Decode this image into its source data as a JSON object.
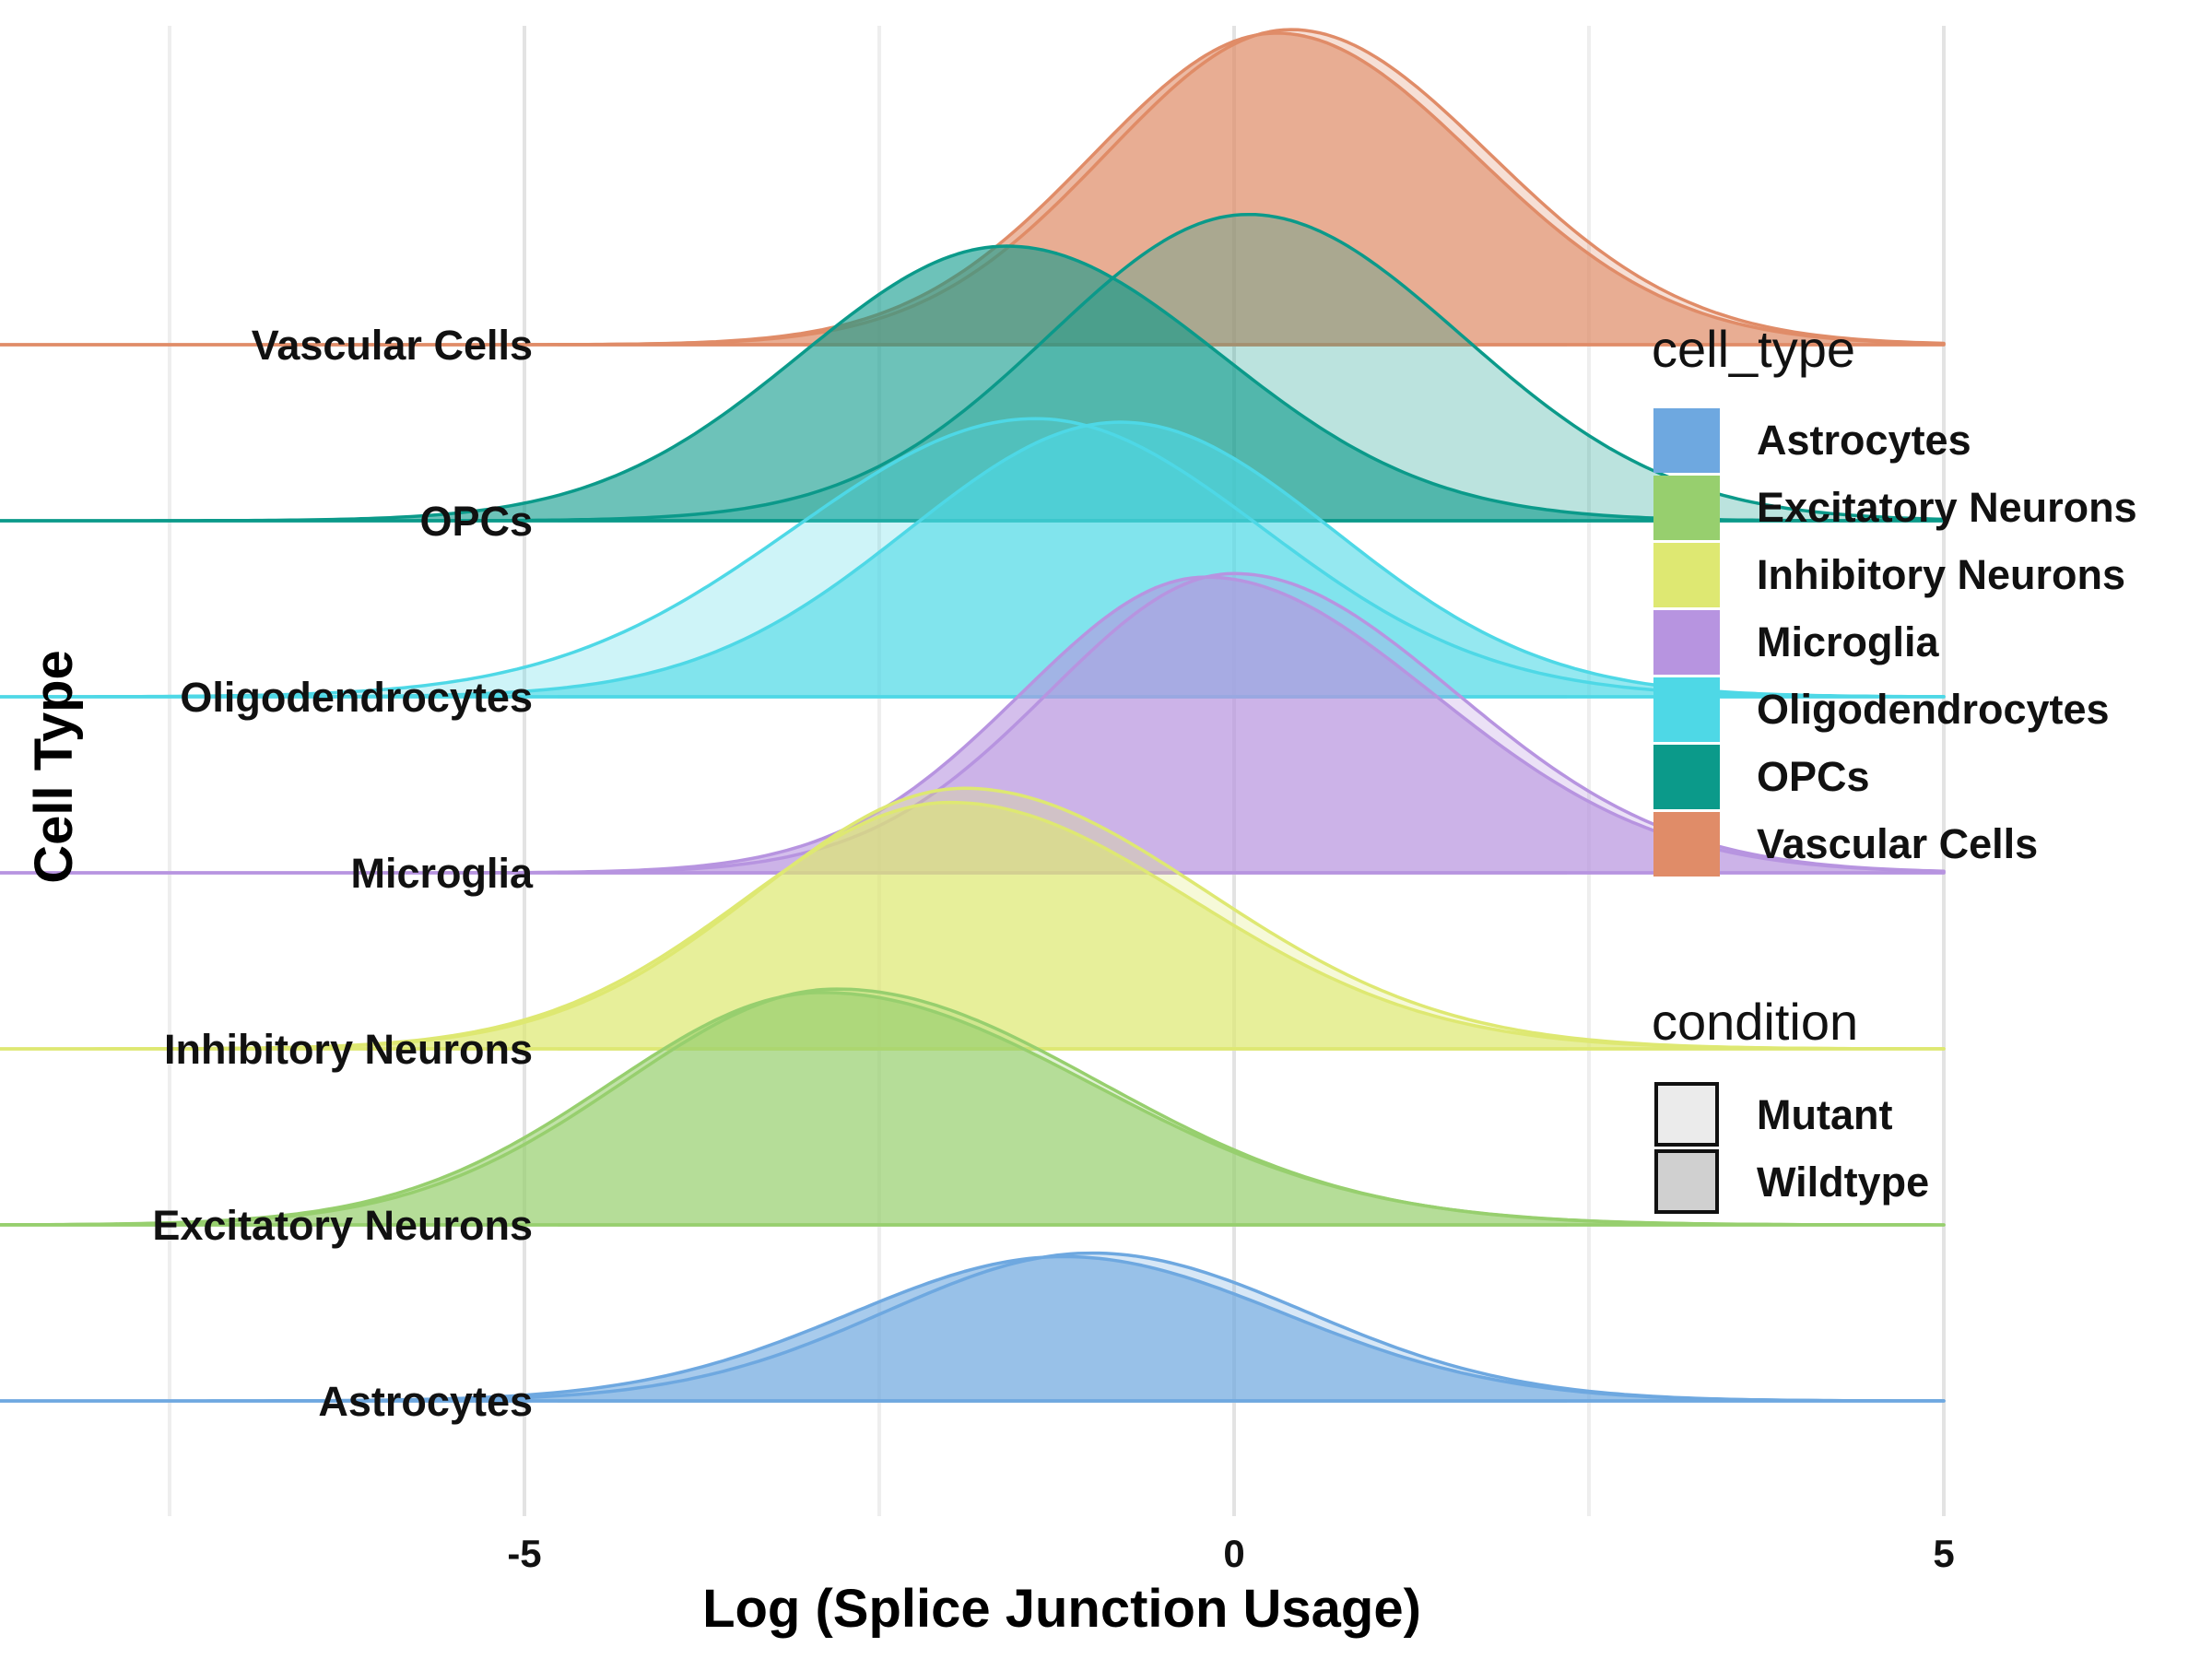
{
  "chart_data": {
    "type": "ridgeline",
    "xlabel": "Log (Splice Junction Usage)",
    "ylabel": "Cell Type",
    "xlim": [
      -11,
      5
    ],
    "xticks": [
      -10,
      -5,
      0,
      5
    ],
    "grid": true,
    "categories": [
      "Astrocytes",
      "Excitatory Neurons",
      "Inhibitory Neurons",
      "Microglia",
      "Oligodendrocytes",
      "OPCs",
      "Vascular Cells"
    ],
    "legend": {
      "position": "right",
      "fill_title": "cell_type",
      "fill_items": [
        {
          "label": "Astrocytes",
          "color": "#6EA8E0"
        },
        {
          "label": "Excitatory Neurons",
          "color": "#97CF6E"
        },
        {
          "label": "Inhibitory Neurons",
          "color": "#DEE872"
        },
        {
          "label": "Microglia",
          "color": "#B794E0"
        },
        {
          "label": "Oligodendrocytes",
          "color": "#4ED8E6"
        },
        {
          "label": "OPCs",
          "color": "#0B9A8A"
        },
        {
          "label": "Vascular Cells",
          "color": "#E08C68"
        }
      ],
      "condition_title": "condition",
      "condition_items": [
        {
          "label": "Mutant",
          "shade": "#EBEBEB"
        },
        {
          "label": "Wildtype",
          "shade": "#D0D0D0"
        }
      ]
    },
    "series": [
      {
        "cell_type": "Astrocytes",
        "color": "#6EA8E0",
        "mutant": {
          "mean": -1.0,
          "sd_left": 1.45,
          "sd_right": 1.5,
          "height": 0.84
        },
        "wildtype": {
          "mean": -1.2,
          "sd_left": 1.5,
          "sd_right": 1.55,
          "height": 0.82
        }
      },
      {
        "cell_type": "Excitatory Neurons",
        "color": "#97CF6E",
        "mutant": {
          "mean": -2.8,
          "sd_left": 1.5,
          "sd_right": 1.85,
          "height": 1.34
        },
        "wildtype": {
          "mean": -2.9,
          "sd_left": 1.5,
          "sd_right": 1.9,
          "height": 1.32
        }
      },
      {
        "cell_type": "Inhibitory Neurons",
        "color": "#DEE872",
        "mutant": {
          "mean": -1.9,
          "sd_left": 1.45,
          "sd_right": 1.7,
          "height": 1.48
        },
        "wildtype": {
          "mean": -2.0,
          "sd_left": 1.45,
          "sd_right": 1.7,
          "height": 1.4
        }
      },
      {
        "cell_type": "Microglia",
        "color": "#B794E0",
        "mutant": {
          "mean": 0.0,
          "sd_left": 1.3,
          "sd_right": 1.55,
          "height": 1.7
        },
        "wildtype": {
          "mean": -0.2,
          "sd_left": 1.3,
          "sd_right": 1.6,
          "height": 1.68
        }
      },
      {
        "cell_type": "Oligodendrocytes",
        "color": "#4ED8E6",
        "mutant": {
          "mean": -1.4,
          "sd_left": 1.7,
          "sd_right": 1.6,
          "height": 1.58
        },
        "wildtype": {
          "mean": -0.8,
          "sd_left": 1.5,
          "sd_right": 1.5,
          "height": 1.56
        }
      },
      {
        "cell_type": "OPCs",
        "color": "#0B9A8A",
        "mutant": {
          "mean": 0.1,
          "sd_left": 1.4,
          "sd_right": 1.5,
          "height": 1.74
        },
        "wildtype": {
          "mean": -1.6,
          "sd_left": 1.45,
          "sd_right": 1.5,
          "height": 1.56
        }
      },
      {
        "cell_type": "Vascular Cells",
        "color": "#E08C68",
        "mutant": {
          "mean": 0.4,
          "sd_left": 1.3,
          "sd_right": 1.4,
          "height": 1.79
        },
        "wildtype": {
          "mean": 0.3,
          "sd_left": 1.3,
          "sd_right": 1.4,
          "height": 1.77
        }
      }
    ]
  }
}
